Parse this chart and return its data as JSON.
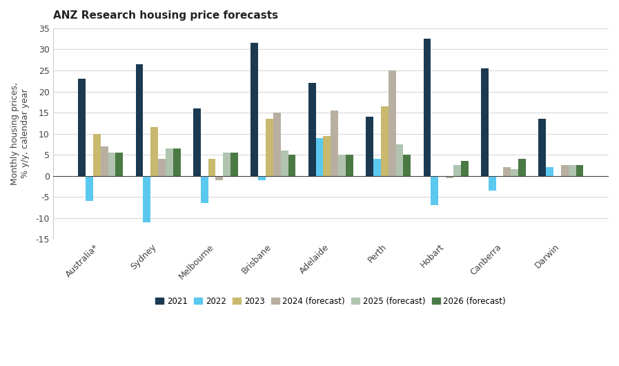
{
  "title": "ANZ Research housing price forecasts",
  "ylabel": "Monthly housing prices,\n% y/y, calendar year",
  "categories": [
    "Australia*",
    "Sydney",
    "Melbourne",
    "Brisbane",
    "Adelaide",
    "Perth",
    "Hobart",
    "Canberra",
    "Darwin"
  ],
  "series": {
    "2021": [
      23,
      26.5,
      16,
      31.5,
      22,
      14,
      32.5,
      25.5,
      13.5
    ],
    "2022": [
      -6,
      -11,
      -6.5,
      -1,
      9,
      4,
      -7,
      -3.5,
      2
    ],
    "2023": [
      10,
      11.5,
      4,
      13.5,
      9.5,
      16.5,
      0,
      0,
      0
    ],
    "2024 (forecast)": [
      7,
      4,
      -1,
      15,
      15.5,
      25,
      -0.5,
      2,
      2.5
    ],
    "2025 (forecast)": [
      5.5,
      6.5,
      5.5,
      6,
      5,
      7.5,
      2.5,
      1.5,
      2.5
    ],
    "2026 (forecast)": [
      5.5,
      6.5,
      5.5,
      5,
      5,
      5,
      3.5,
      4,
      2.5
    ]
  },
  "colors": {
    "2021": "#1b3a52",
    "2022": "#5bc8f0",
    "2023": "#c8b96e",
    "2024 (forecast)": "#b8afa0",
    "2025 (forecast)": "#b0c4b0",
    "2026 (forecast)": "#4a7a44"
  },
  "ylim": [
    -15,
    35
  ],
  "yticks": [
    -15,
    -10,
    -5,
    0,
    5,
    10,
    15,
    20,
    25,
    30,
    35
  ],
  "background_color": "#ffffff",
  "plot_bg_color": "#ffffff",
  "grid_color": "#d8d8d8",
  "bar_width": 0.13,
  "legend_labels": [
    "2021",
    "2022",
    "2023",
    "2024 (forecast)",
    "2025 (forecast)",
    "2026 (forecast)"
  ]
}
